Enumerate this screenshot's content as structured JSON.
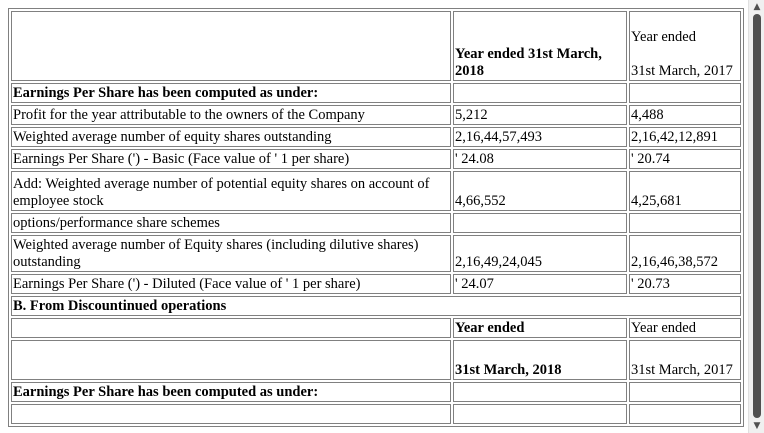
{
  "continuing": {
    "header": {
      "col2": "Year ended 31st March, 2018",
      "col3_line1": "Year ended",
      "col3_line2": "31st March, 2017"
    },
    "section_title": "Earnings Per Share has been computed as under:",
    "rows": [
      {
        "label": "Profit for the year attributable to the owners of the Company",
        "v2018": "5,212",
        "v2017": "4,488"
      },
      {
        "label": "Weighted average number of equity shares outstanding",
        "v2018": "2,16,44,57,493",
        "v2017": "2,16,42,12,891"
      },
      {
        "label": "Earnings Per Share (') - Basic (Face value of ' 1 per share)",
        "v2018": "' 24.08",
        "v2017": "' 20.74"
      },
      {
        "label": "Add: Weighted average number of potential equity shares on account of employee stock",
        "v2018": "4,66,552",
        "v2017": "4,25,681"
      },
      {
        "label": "options/performance share schemes",
        "v2018": "",
        "v2017": ""
      },
      {
        "label": "Weighted average number of Equity shares (including dilutive shares) outstanding",
        "v2018": "2,16,49,24,045",
        "v2017": "2,16,46,38,572"
      },
      {
        "label": "Earnings Per Share (') - Diluted (Face value of ' 1 per share)",
        "v2018": "' 24.07",
        "v2017": "' 20.73"
      }
    ]
  },
  "discontinued": {
    "section_label": "B. From Discountinued operations",
    "header_row1": {
      "col2": "Year ended",
      "col3": "Year ended"
    },
    "header_row2": {
      "col2": "31st March, 2018",
      "col3": "31st March, 2017"
    },
    "section_title": "Earnings Per Share has been computed as under:"
  },
  "scrollbar": {
    "up_icon": "▲",
    "down_icon": "▼"
  }
}
